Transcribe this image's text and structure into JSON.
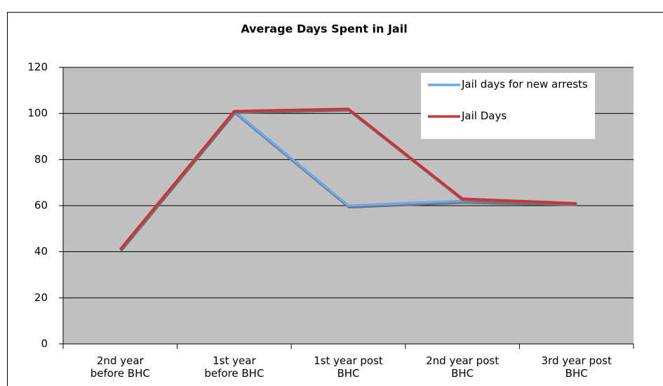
{
  "chart_data": {
    "type": "line",
    "title": "Average Days Spent in Jail",
    "categories": [
      "2nd year\nbefore BHC",
      "1st year\nbefore BHC",
      "1st year post\nBHC",
      "2nd year post\nBHC",
      "3rd year post\nBHC"
    ],
    "series": [
      {
        "name": "Jail days for new arrests",
        "color": "#6aa6ee",
        "values": [
          41,
          101,
          60,
          62,
          61
        ]
      },
      {
        "name": "Jail Days",
        "color": "#d0303a",
        "values": [
          41,
          101,
          102,
          63,
          61
        ]
      }
    ],
    "ylim": [
      0,
      120
    ],
    "yticks": [
      0,
      20,
      40,
      60,
      80,
      100,
      120
    ],
    "grid": true,
    "legend": "top-right"
  }
}
